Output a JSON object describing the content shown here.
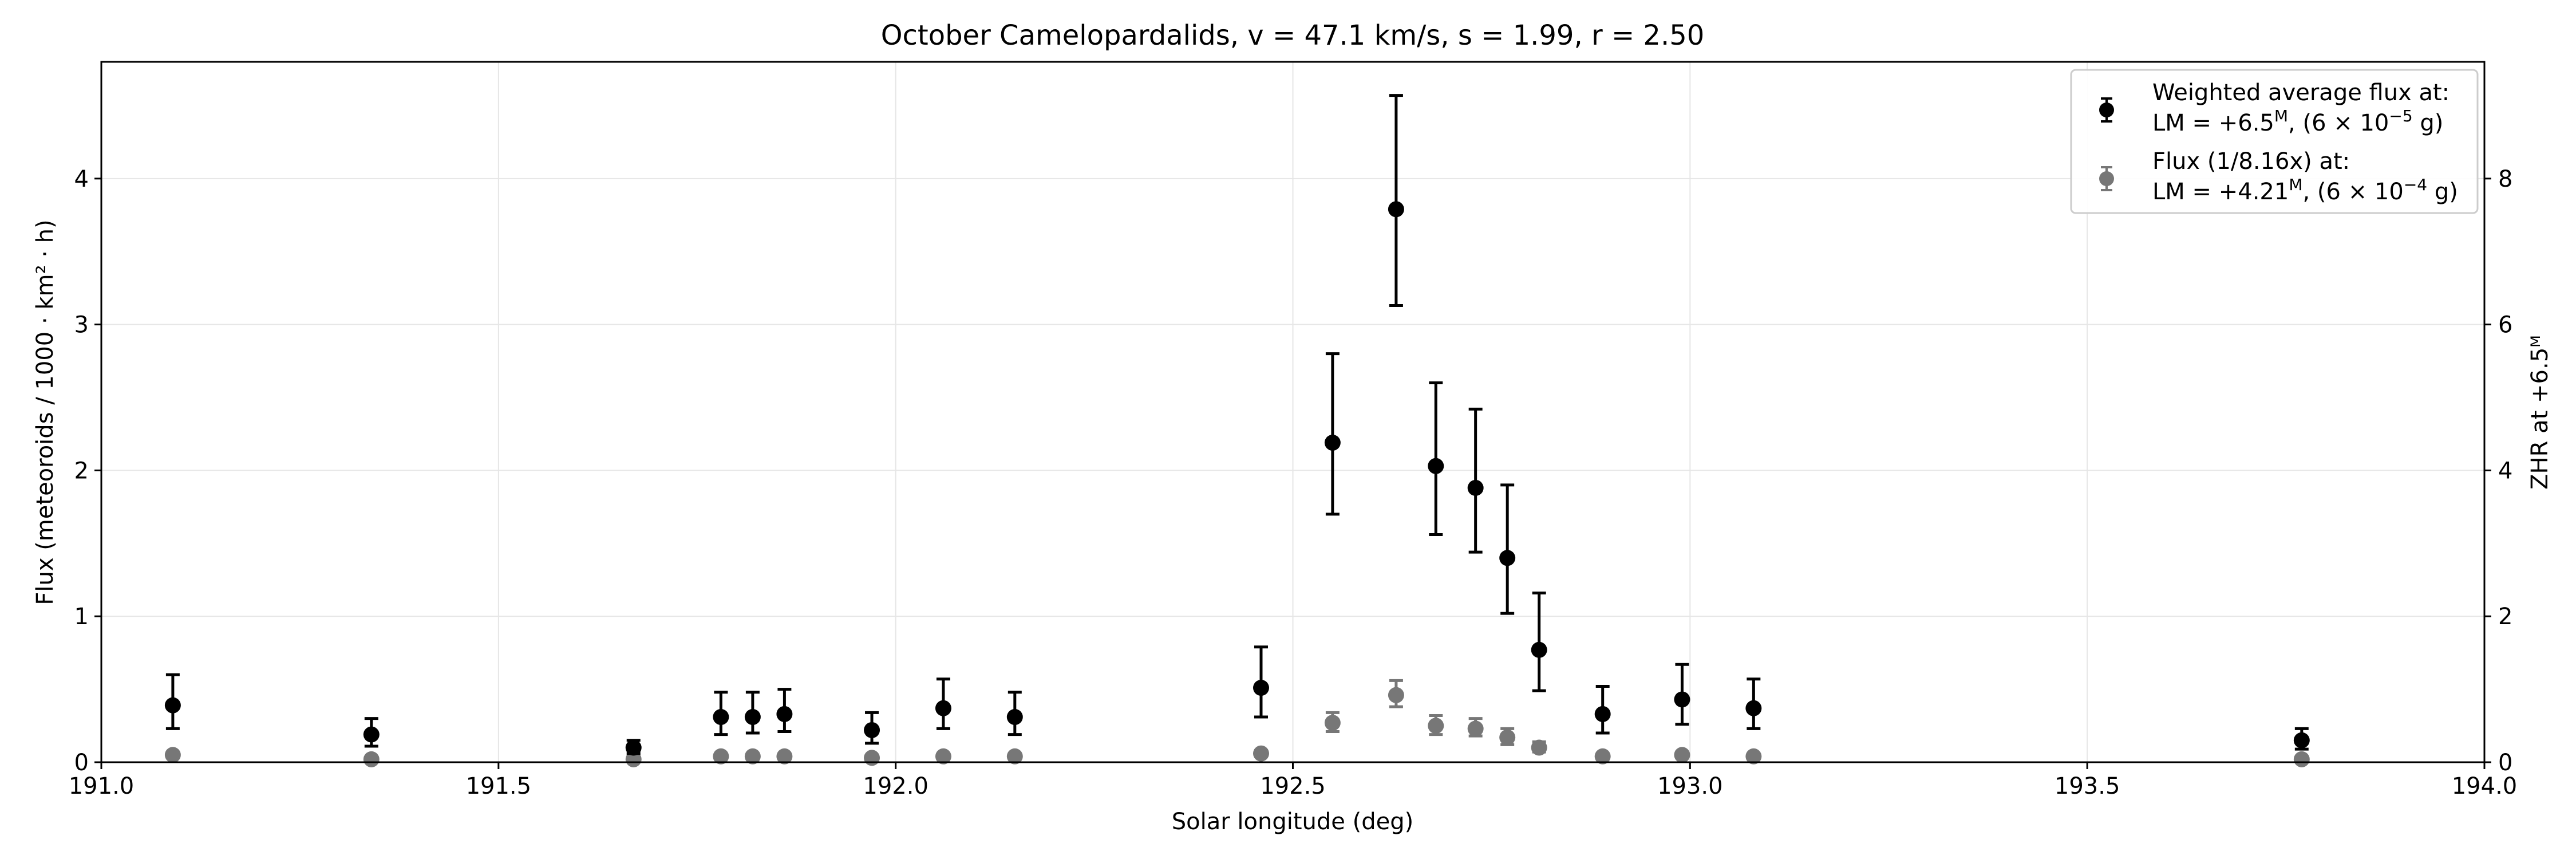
{
  "chart_data": {
    "type": "scatter",
    "title": "October Camelopardalids, v = 47.1 km/s, s = 1.99, r = 2.50",
    "xlabel": "Solar longitude (deg)",
    "ylabel_left": "Flux (meteoroids / 1000 · km² · h)",
    "ylabel_right": "ZHR at +6.5ᴹ",
    "xlim": [
      191.0,
      194.0
    ],
    "ylim_left": [
      0,
      4.8
    ],
    "ylim_right": [
      0,
      9.6
    ],
    "xticks": [
      191.0,
      191.5,
      192.0,
      192.5,
      193.0,
      193.5,
      194.0
    ],
    "xtick_labels": [
      "191.0",
      "191.5",
      "192.0",
      "192.5",
      "193.0",
      "193.5",
      "194.0"
    ],
    "yticks_left": [
      0,
      1,
      2,
      3,
      4
    ],
    "ytick_labels_left": [
      "0",
      "1",
      "2",
      "3",
      "4"
    ],
    "yticks_right": [
      0,
      2,
      4,
      6,
      8
    ],
    "ytick_labels_right": [
      "0",
      "2",
      "4",
      "6",
      "8"
    ],
    "grid": true,
    "legend_position": "top-right",
    "series": [
      {
        "name": "Weighted average flux at: LM = +6.5ᴹ, (6 × 10⁻⁵ g)",
        "legend_line1": "Weighted average flux at:",
        "legend_line2_prefix": "LM = +6.5",
        "legend_line2_sup": "M",
        "legend_line2_mid": ", (6 × 10",
        "legend_line2_exp": "−5",
        "legend_line2_suffix": " g)",
        "color": "#000000",
        "x": [
          191.09,
          191.34,
          191.67,
          191.78,
          191.82,
          191.86,
          191.97,
          192.06,
          192.15,
          192.46,
          192.55,
          192.63,
          192.68,
          192.73,
          192.77,
          192.81,
          192.89,
          192.99,
          193.08,
          193.77
        ],
        "y": [
          0.39,
          0.19,
          0.1,
          0.31,
          0.31,
          0.33,
          0.22,
          0.37,
          0.31,
          0.51,
          2.19,
          3.79,
          2.03,
          1.88,
          1.4,
          0.77,
          0.33,
          0.43,
          0.37,
          0.15
        ],
        "err_low": [
          0.16,
          0.08,
          0.04,
          0.12,
          0.11,
          0.12,
          0.09,
          0.14,
          0.12,
          0.2,
          0.49,
          0.66,
          0.47,
          0.44,
          0.38,
          0.28,
          0.13,
          0.17,
          0.14,
          0.06
        ],
        "err_high": [
          0.21,
          0.11,
          0.05,
          0.17,
          0.17,
          0.17,
          0.12,
          0.2,
          0.17,
          0.28,
          0.61,
          0.78,
          0.57,
          0.54,
          0.5,
          0.39,
          0.19,
          0.24,
          0.2,
          0.08
        ]
      },
      {
        "name": "Flux (1/8.16x) at: LM = +4.21ᴹ, (6 × 10⁻⁴ g)",
        "legend_line1": "Flux (1/8.16x) at:",
        "legend_line2_prefix": "LM = +4.21",
        "legend_line2_sup": "M",
        "legend_line2_mid": ", (6 × 10",
        "legend_line2_exp": "−4",
        "legend_line2_suffix": " g)",
        "color": "#777777",
        "x": [
          191.09,
          191.34,
          191.67,
          191.78,
          191.82,
          191.86,
          191.97,
          192.06,
          192.15,
          192.46,
          192.55,
          192.63,
          192.68,
          192.73,
          192.77,
          192.81,
          192.89,
          192.99,
          193.08,
          193.77
        ],
        "y": [
          0.05,
          0.02,
          0.02,
          0.04,
          0.04,
          0.04,
          0.03,
          0.04,
          0.04,
          0.06,
          0.27,
          0.46,
          0.25,
          0.23,
          0.17,
          0.1,
          0.04,
          0.05,
          0.04,
          0.02
        ],
        "err_low": [
          0.01,
          0.01,
          0.01,
          0.01,
          0.01,
          0.01,
          0.01,
          0.01,
          0.01,
          0.02,
          0.06,
          0.08,
          0.06,
          0.05,
          0.05,
          0.03,
          0.01,
          0.02,
          0.01,
          0.01
        ],
        "err_high": [
          0.01,
          0.01,
          0.01,
          0.01,
          0.01,
          0.01,
          0.01,
          0.01,
          0.01,
          0.02,
          0.07,
          0.1,
          0.07,
          0.07,
          0.06,
          0.04,
          0.01,
          0.02,
          0.01,
          0.01
        ]
      }
    ]
  }
}
